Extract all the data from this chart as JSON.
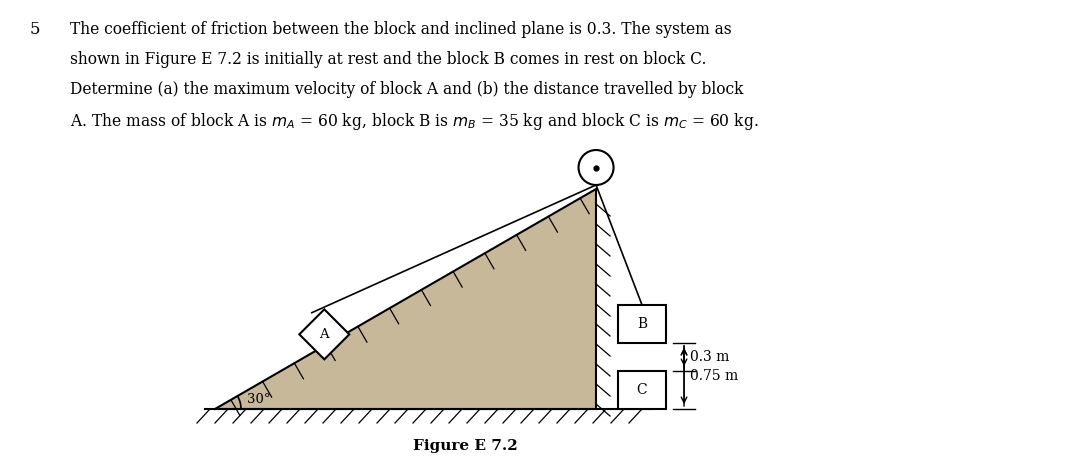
{
  "bg_color": "#ffffff",
  "text_color": "#000000",
  "problem_number": "5",
  "figure_label": "Figure E 7.2",
  "angle_label": "30°",
  "dim_03": "0.3 m",
  "dim_075": "0.75 m",
  "block_A_label": "A",
  "block_B_label": "B",
  "block_C_label": "C",
  "incline_fill": "#c8b89a",
  "line_text1": "The coefficient of friction between the block and inclined plane is 0.3. The system as",
  "line_text2": "shown in Figure E 7.2 is initially at rest and the block B comes in rest on block C.",
  "line_text3": "Determine (a) the maximum velocity of block A and (b) the distance travelled by block",
  "line_text4": "A. The mass of block A is $m_A$ = 60 kg, block B is $m_B$ = 35 kg and block C is $m_C$ = 60 kg."
}
